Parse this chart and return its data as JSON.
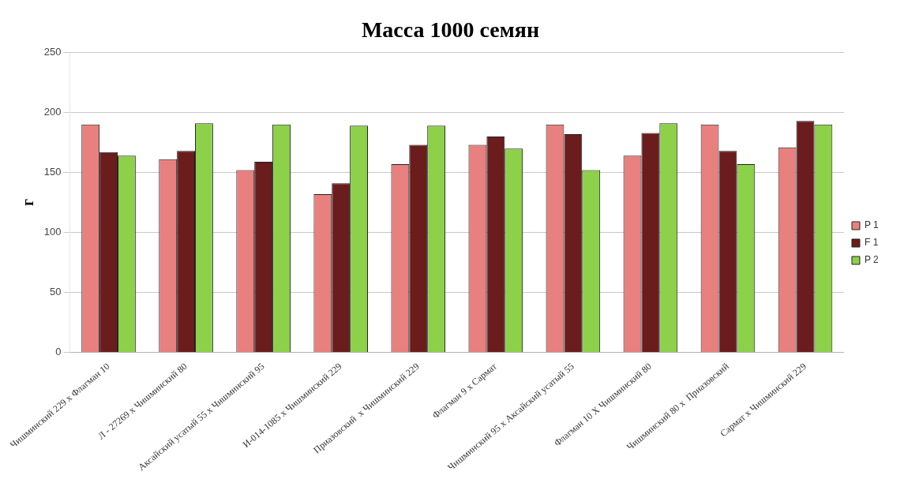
{
  "chart_data": {
    "type": "bar",
    "title": "Масса 1000 семян",
    "ylabel": "г",
    "categories": [
      "Чишминский 229 х Флагман 10",
      "Л - 27269 х Чишминский 80",
      "Аксайский усатый 55 х Чишминский 95",
      "И-014-1085 х Чишминский 229",
      "Приазовский  х Чишминский 229",
      "Флагман 9 х Сармат",
      "Чишминский 95 х Аксайский усатый 55",
      "Флагман 10 Х Чишминский 80",
      "Чишминский 80 х  Приазовский",
      "Сармат х Чишминский 229"
    ],
    "series": [
      {
        "name": "P 1",
        "color": "#e8807f",
        "values": [
          190,
          161,
          152,
          132,
          157,
          173,
          190,
          164,
          190,
          171
        ]
      },
      {
        "name": "F 1",
        "color": "#6b1c1c",
        "values": [
          167,
          168,
          159,
          141,
          173,
          180,
          182,
          183,
          168,
          193
        ]
      },
      {
        "name": "P 2",
        "color": "#8dd04a",
        "values": [
          164,
          191,
          190,
          189,
          189,
          170,
          152,
          191,
          157,
          190
        ]
      }
    ],
    "ylim": [
      0,
      250
    ],
    "yticks": [
      0,
      50,
      100,
      150,
      200,
      250
    ],
    "grid": "y",
    "legend": "right"
  }
}
